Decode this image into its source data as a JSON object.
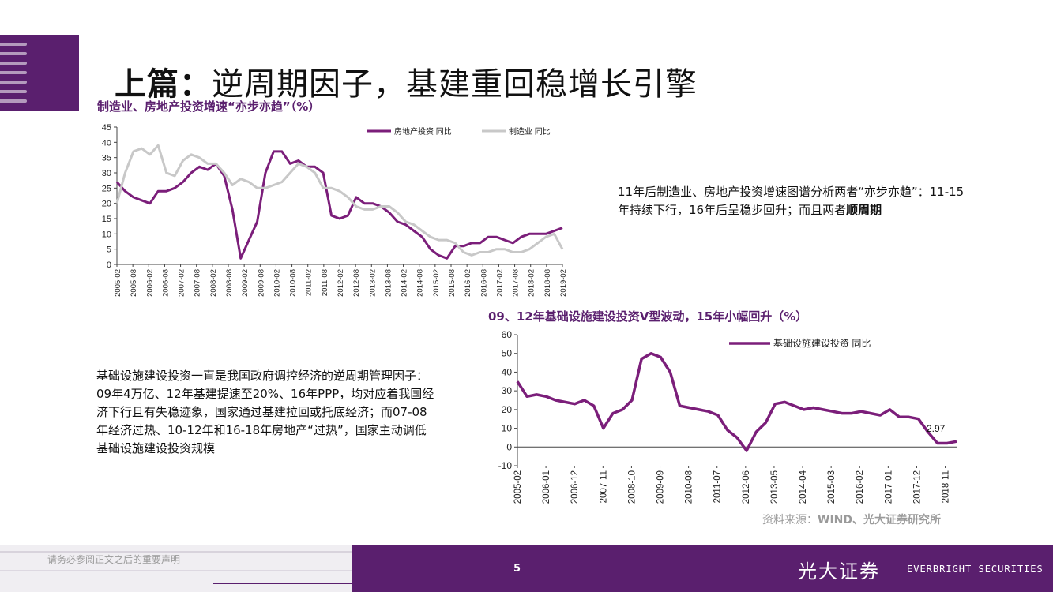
{
  "slide": {
    "title_bold": "上篇：",
    "title_rest": "逆周期因子，基建重回稳增长引擎",
    "caption1": "制造业、房地产投资增速“亦步亦趋”（%）",
    "caption2": "09、12年基础设施建设投资V型波动，15年小幅回升（%）",
    "note1_text": "11年后制造业、房地产投资增速图谱分析两者“亦步亦趋”：11-15年持续下行，16年后呈稳步回升；而且两者",
    "note1_bold": "顺周期",
    "note2": "基础设施建设投资一直是我国政府调控经济的逆周期管理因子：09年4万亿、12年基建提速至20%、16年PPP，均对应着我国经济下行且有失稳迹象，国家通过基建拉回或托底经济；而07-08年经济过热、10-12年和16-18年房地产“过热”，国家主动调低基础设施建设投资规模",
    "source_prefix": "资料来源：",
    "source_bold": "WIND、光大证券研究所",
    "disclaimer": "请务必参阅正文之后的重要声明",
    "page_number": "5",
    "logo_cn": "光大证券",
    "logo_en": "EVERBRIGHT SECURITIES"
  },
  "colors": {
    "brand": "#5a1f6e",
    "realestate": "#7b1e7a",
    "manufacturing": "#c8c8c8",
    "infrastructure": "#7b1e7a"
  },
  "chart_data": [
    {
      "type": "line",
      "ylim": [
        0,
        45
      ],
      "yticks": [
        "45",
        "40",
        "35",
        "30",
        "25",
        "20",
        "15",
        "10",
        "5",
        "0"
      ],
      "xticks": [
        "2005-02",
        "2005-08",
        "2006-02",
        "2006-08",
        "2007-02",
        "2007-08",
        "2008-02",
        "2008-08",
        "2009-02",
        "2009-08",
        "2010-02",
        "2010-08",
        "2011-02",
        "2011-08",
        "2012-02",
        "2012-08",
        "2013-02",
        "2013-08",
        "2014-02",
        "2014-08",
        "2015-02",
        "2015-08",
        "2016-02",
        "2016-08",
        "2017-02",
        "2017-08",
        "2018-02",
        "2018-08",
        "2019-02"
      ],
      "legend_position": "top",
      "series": [
        {
          "name": "房地产投资  同比",
          "values": [
            27,
            24,
            22,
            21,
            20,
            24,
            24,
            25,
            27,
            30,
            32,
            31,
            33,
            29,
            18,
            2,
            8,
            14,
            30,
            37,
            37,
            33,
            34,
            32,
            32,
            30,
            16,
            15,
            16,
            22,
            20,
            20,
            19,
            17,
            14,
            13,
            11,
            9,
            5,
            3,
            2,
            6,
            6,
            7,
            7,
            9,
            9,
            8,
            7,
            9,
            10,
            10,
            10,
            11,
            12
          ]
        },
        {
          "name": "制造业  同比",
          "values": [
            20,
            30,
            37,
            38,
            36,
            39,
            30,
            29,
            34,
            36,
            35,
            33,
            33,
            30,
            26,
            28,
            27,
            25,
            25,
            26,
            27,
            30,
            33,
            32,
            30,
            25,
            25,
            24,
            22,
            19,
            18,
            18,
            19,
            19,
            17,
            14,
            13,
            11,
            9,
            8,
            8,
            7,
            4,
            3,
            4,
            4,
            5,
            5,
            4,
            4,
            5,
            7,
            9,
            10,
            5
          ]
        }
      ]
    },
    {
      "type": "line",
      "ylim": [
        -10,
        60
      ],
      "yticks": [
        "60",
        "50",
        "40",
        "30",
        "20",
        "10",
        "0",
        "-10"
      ],
      "xticks": [
        "2005-02",
        "2006-01",
        "2006-12",
        "2007-11",
        "2008-10",
        "2009-09",
        "2010-08",
        "2011-07",
        "2012-06",
        "2013-05",
        "2014-04",
        "2015-03",
        "2016-02",
        "2017-01",
        "2017-12",
        "2018-11"
      ],
      "legend_position": "top-right",
      "annotation": "2.97",
      "series": [
        {
          "name": "基础设施建设投资  同比",
          "values": [
            35,
            27,
            28,
            27,
            25,
            24,
            23,
            25,
            22,
            10,
            18,
            20,
            25,
            47,
            50,
            48,
            40,
            22,
            21,
            20,
            19,
            17,
            9,
            5,
            -2,
            8,
            13,
            23,
            24,
            22,
            20,
            21,
            20,
            19,
            18,
            18,
            19,
            18,
            17,
            20,
            16,
            16,
            15,
            8,
            2,
            2,
            2.97
          ]
        }
      ]
    }
  ]
}
